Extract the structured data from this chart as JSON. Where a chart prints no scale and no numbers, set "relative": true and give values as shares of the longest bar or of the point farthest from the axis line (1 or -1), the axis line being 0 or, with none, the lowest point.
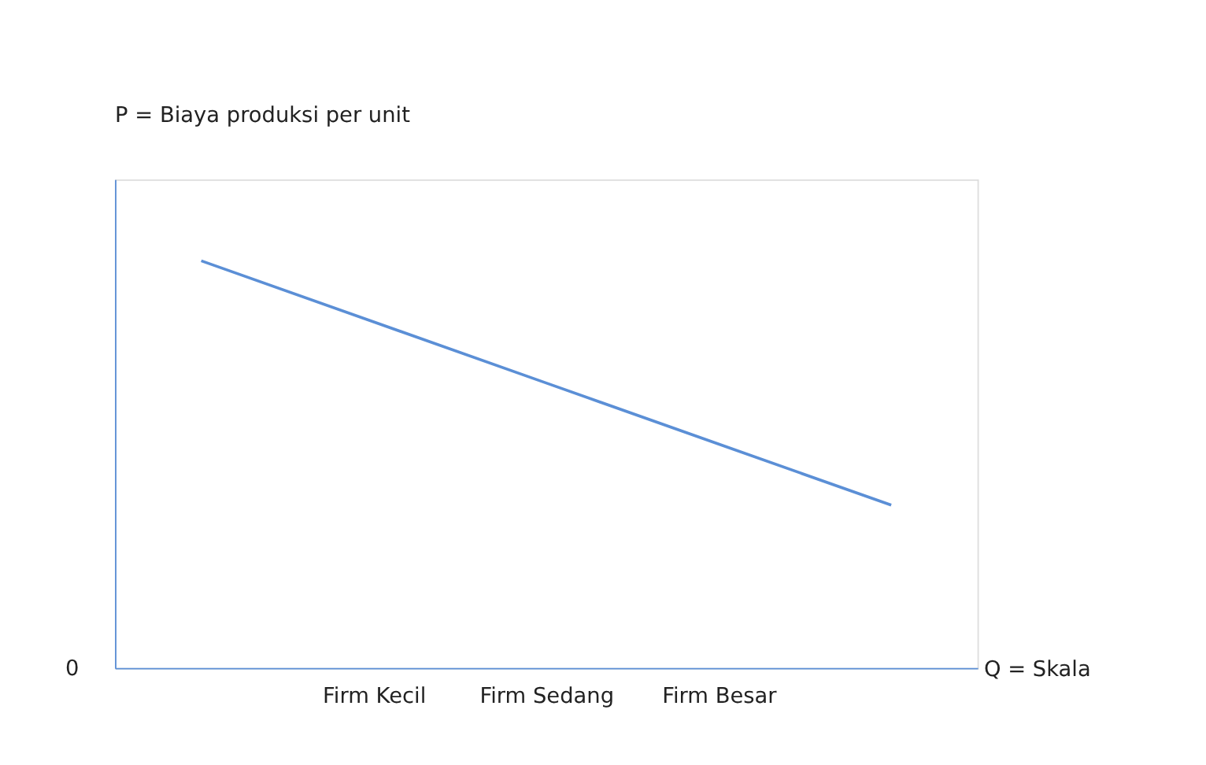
{
  "chart_data": {
    "type": "line",
    "relative": true,
    "xlabel": "Q = Skala",
    "categories": [
      null,
      "Firm Kecil",
      "Firm Sedang",
      "Firm Besar",
      null
    ],
    "series": [
      {
        "color": "#5b8fd6",
        "values": [
          1,
          0.85,
          0.7,
          0.55,
          0.4
        ]
      }
    ],
    "annotations": [
      "P = Biaya produksi per unit",
      "0"
    ],
    "grid": false,
    "marker": "none",
    "line_style": "solid"
  }
}
